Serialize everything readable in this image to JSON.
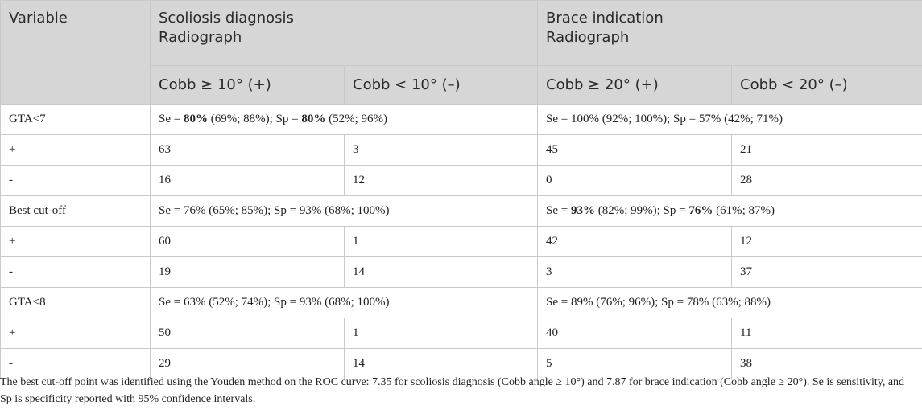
{
  "header": {
    "variable": "Variable",
    "scoliosis_group_line1": "Scoliosis diagnosis",
    "scoliosis_group_line2": "Radiograph",
    "brace_group_line1": "Brace indication",
    "brace_group_line2": "Radiograph",
    "col_cobb10_pos": "Cobb ≥ 10° (+)",
    "col_cobb10_neg": "Cobb < 10° (–)",
    "col_cobb20_pos": "Cobb ≥ 20° (+)",
    "col_cobb20_neg": "Cobb < 20° (–)"
  },
  "rows": [
    {
      "type": "summary",
      "label": "GTA<7",
      "scoliosis": {
        "pre": "Se = ",
        "se": "80%",
        "mid": " (69%; 88%); Sp = ",
        "sp": "80%",
        "post": " (52%; 96%)",
        "bold_se": true,
        "bold_sp": true
      },
      "brace": {
        "pre": "Se = ",
        "se": "100%",
        "mid": " (92%; 100%); Sp = ",
        "sp": "57%",
        "post": " (42%; 71%)",
        "bold_se": false,
        "bold_sp": false
      }
    },
    {
      "type": "counts",
      "label": "+",
      "c1": "63",
      "c2": "3",
      "c3": "45",
      "c4": "21"
    },
    {
      "type": "counts",
      "label": "-",
      "c1": "16",
      "c2": "12",
      "c3": "0",
      "c4": "28"
    },
    {
      "type": "summary",
      "label": "Best cut-off",
      "scoliosis": {
        "pre": "Se = ",
        "se": "76%",
        "mid": " (65%; 85%); Sp = ",
        "sp": "93%",
        "post": " (68%; 100%)",
        "bold_se": false,
        "bold_sp": false
      },
      "brace": {
        "pre": "Se = ",
        "se": "93%",
        "mid": " (82%; 99%); Sp = ",
        "sp": "76%",
        "post": " (61%; 87%)",
        "bold_se": true,
        "bold_sp": true
      }
    },
    {
      "type": "counts",
      "label": "+",
      "c1": "60",
      "c2": "1",
      "c3": "42",
      "c4": "12"
    },
    {
      "type": "counts",
      "label": "-",
      "c1": "19",
      "c2": "14",
      "c3": "3",
      "c4": "37"
    },
    {
      "type": "summary",
      "label": "GTA<8",
      "scoliosis": {
        "pre": "Se = ",
        "se": "63%",
        "mid": " (52%; 74%); Sp = ",
        "sp": "93%",
        "post": " (68%; 100%)",
        "bold_se": false,
        "bold_sp": false
      },
      "brace": {
        "pre": "Se = ",
        "se": "89%",
        "mid": " (76%; 96%); Sp = ",
        "sp": "78%",
        "post": " (63%; 88%)",
        "bold_se": false,
        "bold_sp": false
      }
    },
    {
      "type": "counts",
      "label": "+",
      "c1": "50",
      "c2": "1",
      "c3": "40",
      "c4": "11"
    },
    {
      "type": "counts",
      "label": "-",
      "c1": "29",
      "c2": "14",
      "c3": "5",
      "c4": "38"
    }
  ],
  "caption": "The best cut-off point was identified using the Youden method on the ROC curve: 7.35 for scoliosis diagnosis (Cobb angle ≥ 10°) and 7.87 for brace indication (Cobb angle ≥ 20°). Se is sensitivity, and Sp is specificity reported with 95% confidence intervals."
}
